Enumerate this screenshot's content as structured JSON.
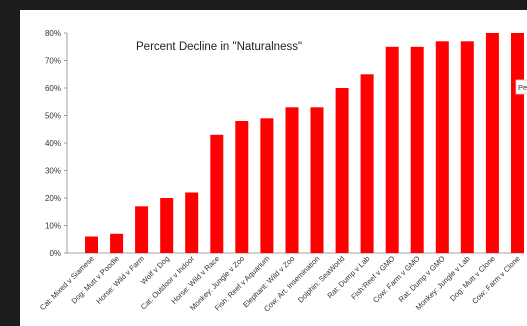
{
  "chart_data": {
    "type": "bar",
    "title": "Percent Decline in \"Naturalness\"",
    "xlabel": "",
    "ylabel": "",
    "ylim": [
      0,
      80
    ],
    "yticks": [
      "0%",
      "10%",
      "20%",
      "30%",
      "40%",
      "50%",
      "60%",
      "70%",
      "80%"
    ],
    "categories": [
      "Cat: Mixed v Siamese",
      "Dog: Mutt v Poodle",
      "Horse: Wild v Farm",
      "Wolf v Dog",
      "Cat: Outdoor v Indoor",
      "Horse: Wild v Race",
      "Monkey: Jungle v Zoo",
      "Fish: Reef v Aquarium",
      "Elephant: Wild v Zoo",
      "Cow: Art. Insemination",
      "Dolphin: SeaWorld",
      "Rat: Dump v Lab",
      "Fish:Reef v GMO",
      "Cow: Farm v GMO",
      "Rat: Dump v GMO",
      "Monkey: Jungle v Lab",
      "Dog: Mutt v Clone",
      "Cow: Farm v Clone"
    ],
    "values": [
      6,
      7,
      17,
      20,
      22,
      43,
      48,
      49,
      53,
      53,
      60,
      65,
      75,
      75,
      77,
      77,
      80,
      80
    ],
    "bar_color": "#ff0000",
    "grid": false,
    "legend": "right",
    "legend_text": "Pe"
  }
}
